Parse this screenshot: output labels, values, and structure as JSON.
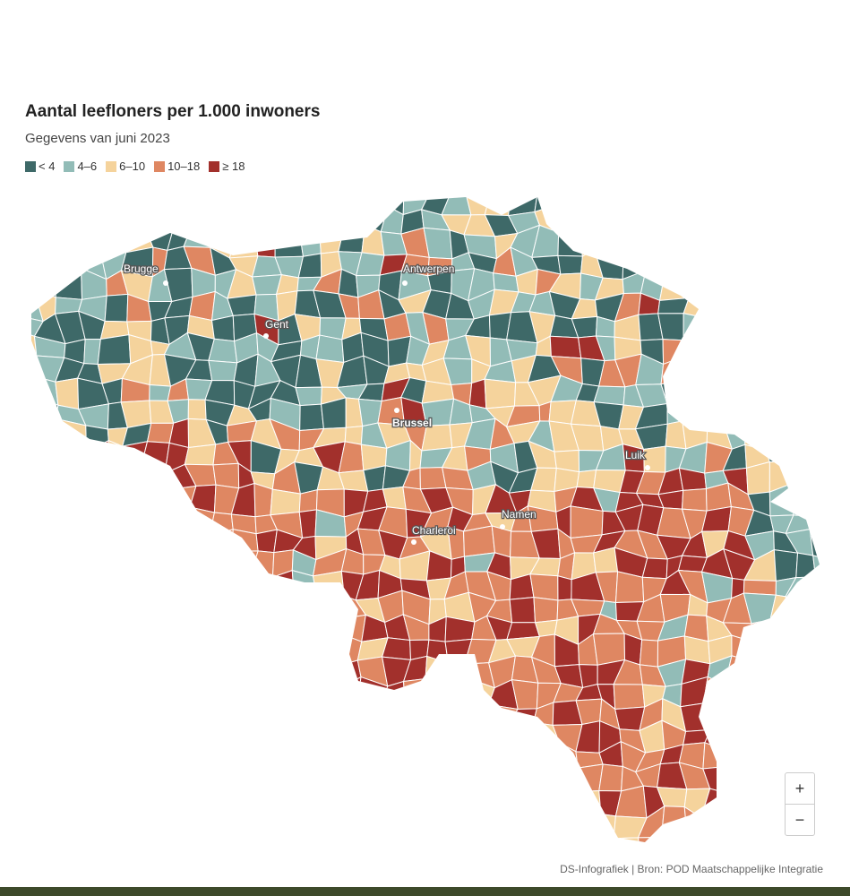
{
  "header": {
    "title": "Aantal leefloners per 1.000 inwoners",
    "subtitle": "Gegevens van juni 2023"
  },
  "legend": {
    "items": [
      {
        "label": "< 4",
        "color": "#3e6968"
      },
      {
        "label": "4–6",
        "color": "#92bcb7"
      },
      {
        "label": "6–10",
        "color": "#f5d39c"
      },
      {
        "label": "10–18",
        "color": "#df8762"
      },
      {
        "label": "≥ 18",
        "color": "#a2302c"
      }
    ]
  },
  "map": {
    "cities": [
      "Brugge",
      "Antwerpen",
      "Gent",
      "Brussel",
      "Luik",
      "Namen",
      "Charleroi"
    ]
  },
  "controls": {
    "zoom_in": "+",
    "zoom_out": "−"
  },
  "footer": {
    "source": "DS-Infografiek | Bron: POD Maatschappelijke Integratie"
  }
}
